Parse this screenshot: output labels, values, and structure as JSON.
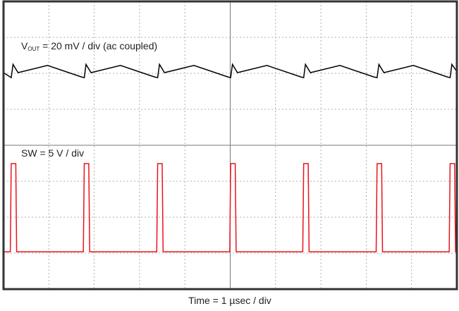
{
  "chart_data": {
    "type": "line",
    "xlabel": "Time = 1 µsec / div",
    "xlim": [
      0,
      10
    ],
    "ylim": [
      0,
      8
    ],
    "xticks": [
      0,
      1,
      2,
      3,
      4,
      5,
      6,
      7,
      8,
      9,
      10
    ],
    "yticks": [
      0,
      1,
      2,
      3,
      4,
      5,
      6,
      7,
      8
    ],
    "grid": true,
    "series": [
      {
        "name": "V",
        "name_sub": "OUT",
        "name_rest": " = 20 mV / div (ac coupled)",
        "color": "#000000",
        "x": [
          0,
          0.17,
          0.21,
          0.32,
          0.97,
          1.72,
          1.78,
          1.82,
          1.93,
          2.58,
          3.33,
          3.4,
          3.44,
          3.55,
          4.2,
          4.95,
          5.01,
          5.05,
          5.16,
          5.81,
          6.56,
          6.62,
          6.66,
          6.77,
          7.42,
          8.17,
          8.24,
          8.28,
          8.39,
          9.04,
          9.79,
          9.85,
          9.89,
          10
        ],
        "values": [
          6.02,
          5.88,
          6.25,
          6.02,
          6.22,
          5.9,
          5.88,
          6.25,
          6.02,
          6.22,
          5.9,
          5.88,
          6.25,
          6.02,
          6.22,
          5.9,
          5.88,
          6.25,
          6.02,
          6.22,
          5.9,
          5.88,
          6.25,
          6.02,
          6.22,
          5.9,
          5.88,
          6.25,
          6.02,
          6.22,
          5.9,
          5.88,
          6.25,
          6.05
        ]
      },
      {
        "name": "SW = 5 V / div",
        "color": "#e8141c",
        "x": [
          0,
          0.15,
          0.17,
          0.27,
          0.29,
          1.76,
          1.78,
          1.88,
          1.9,
          3.38,
          3.4,
          3.5,
          3.52,
          4.99,
          5.01,
          5.11,
          5.13,
          6.6,
          6.62,
          6.72,
          6.74,
          8.22,
          8.24,
          8.34,
          8.36,
          9.83,
          9.85,
          9.95,
          9.97,
          10
        ],
        "values": [
          1.04,
          1.04,
          3.49,
          3.49,
          1.04,
          1.04,
          3.49,
          3.49,
          1.04,
          1.04,
          3.49,
          3.49,
          1.04,
          1.04,
          3.49,
          3.49,
          1.04,
          1.04,
          3.49,
          3.49,
          1.04,
          1.04,
          3.49,
          3.49,
          1.04,
          1.04,
          3.49,
          3.49,
          1.04,
          1.04
        ]
      }
    ]
  }
}
